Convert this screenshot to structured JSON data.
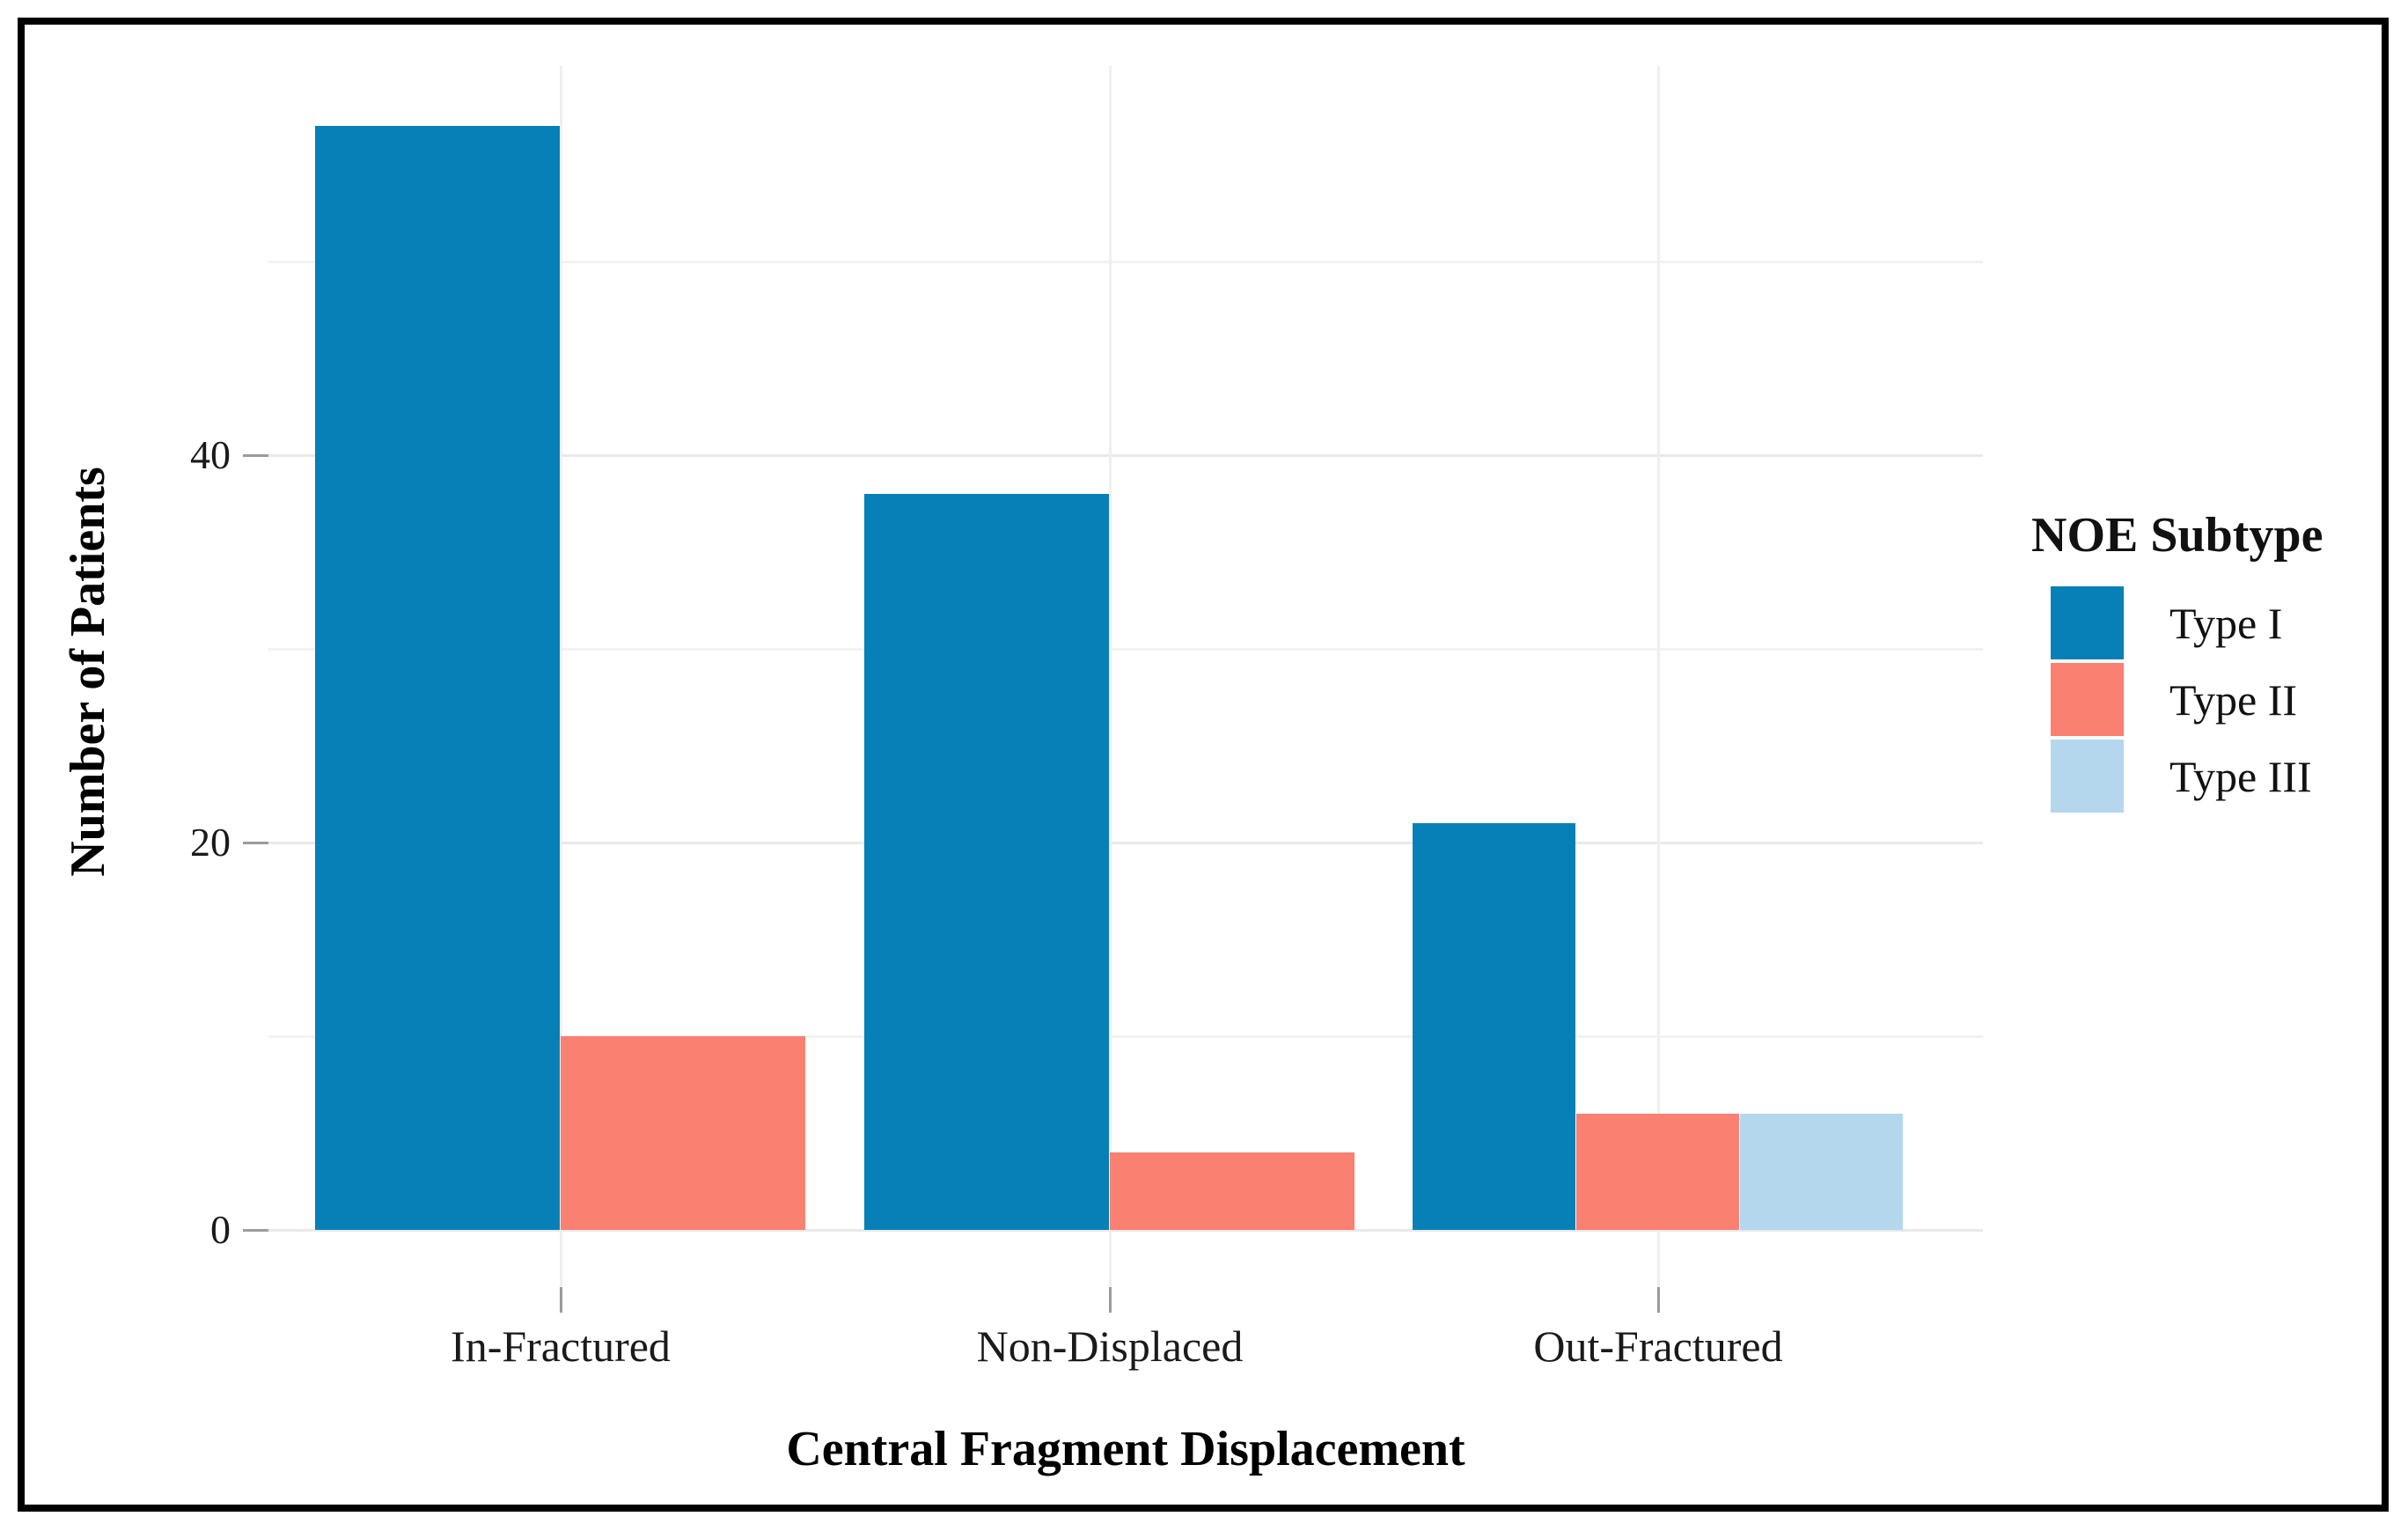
{
  "figure": {
    "background": "#ffffff",
    "border_color": "#000000"
  },
  "y_axis": {
    "title": "Number of Patients",
    "tick_labels": [
      "0",
      "20",
      "40"
    ],
    "tick_values": [
      0,
      20,
      40
    ],
    "gridline_values": [
      0,
      10,
      20,
      30,
      40,
      50
    ]
  },
  "x_axis": {
    "title": "Central Fragment Displacement",
    "categories": [
      "In-Fractured",
      "Non-Displaced",
      "Out-Fractured"
    ]
  },
  "legend": {
    "title": "NOE Subtype",
    "items": [
      {
        "label": "Type I",
        "color": "#0780b7"
      },
      {
        "label": "Type II",
        "color": "#fa8072"
      },
      {
        "label": "Type III",
        "color": "#b4d7ee"
      }
    ]
  },
  "chart_data": {
    "type": "bar",
    "title": "",
    "xlabel": "Central Fragment Displacement",
    "ylabel": "Number of Patients",
    "categories": [
      "In-Fractured",
      "Non-Displaced",
      "Out-Fractured"
    ],
    "series": [
      {
        "name": "Type I",
        "color": "#0780b7",
        "values": [
          57,
          38,
          21
        ]
      },
      {
        "name": "Type II",
        "color": "#fa8072",
        "values": [
          10,
          4,
          6
        ]
      },
      {
        "name": "Type III",
        "color": "#b4d7ee",
        "values": [
          null,
          null,
          6
        ]
      }
    ],
    "ylim": [
      0,
      60
    ],
    "grid": true,
    "legend_title": "NOE Subtype",
    "legend_position": "right",
    "bar_grouping": "dodged"
  }
}
